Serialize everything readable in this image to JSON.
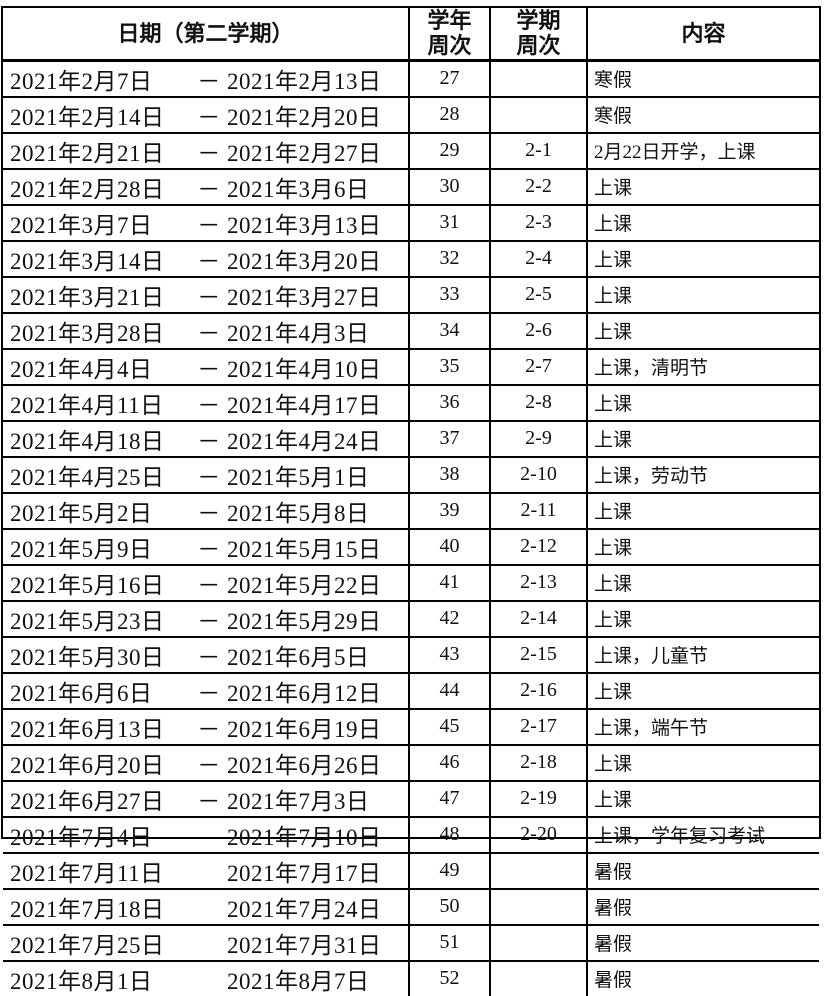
{
  "colors": {
    "border": "#000000",
    "background": "#ffffff",
    "text": "#111111"
  },
  "table": {
    "headers": {
      "date": "日期（第二学期）",
      "year_week": "学年\n周次",
      "semester_week": "学期\n周次",
      "content": "内容"
    },
    "rows": [
      {
        "start": "2021年2月7日",
        "dash": "－",
        "end": "2021年2月13日",
        "year_week": "27",
        "semester_week": "",
        "content": "寒假"
      },
      {
        "start": "2021年2月14日",
        "dash": "－",
        "end": "2021年2月20日",
        "year_week": "28",
        "semester_week": "",
        "content": "寒假"
      },
      {
        "start": "2021年2月21日",
        "dash": "－",
        "end": "2021年2月27日",
        "year_week": "29",
        "semester_week": "2-1",
        "content": "2月22日开学，上课"
      },
      {
        "start": "2021年2月28日",
        "dash": "－",
        "end": "2021年3月6日",
        "year_week": "30",
        "semester_week": "2-2",
        "content": "上课"
      },
      {
        "start": "2021年3月7日",
        "dash": "－",
        "end": "2021年3月13日",
        "year_week": "31",
        "semester_week": "2-3",
        "content": "上课"
      },
      {
        "start": "2021年3月14日",
        "dash": "－",
        "end": "2021年3月20日",
        "year_week": "32",
        "semester_week": "2-4",
        "content": "上课"
      },
      {
        "start": "2021年3月21日",
        "dash": "－",
        "end": "2021年3月27日",
        "year_week": "33",
        "semester_week": "2-5",
        "content": "上课"
      },
      {
        "start": "2021年3月28日",
        "dash": "－",
        "end": "2021年4月3日",
        "year_week": "34",
        "semester_week": "2-6",
        "content": "上课"
      },
      {
        "start": "2021年4月4日",
        "dash": "－",
        "end": "2021年4月10日",
        "year_week": "35",
        "semester_week": "2-7",
        "content": "上课，清明节"
      },
      {
        "start": "2021年4月11日",
        "dash": "－",
        "end": "2021年4月17日",
        "year_week": "36",
        "semester_week": "2-8",
        "content": "上课"
      },
      {
        "start": "2021年4月18日",
        "dash": "－",
        "end": "2021年4月24日",
        "year_week": "37",
        "semester_week": "2-9",
        "content": "上课"
      },
      {
        "start": "2021年4月25日",
        "dash": "－",
        "end": "2021年5月1日",
        "year_week": "38",
        "semester_week": "2-10",
        "content": "上课，劳动节"
      },
      {
        "start": "2021年5月2日",
        "dash": "－",
        "end": "2021年5月8日",
        "year_week": "39",
        "semester_week": "2-11",
        "content": "上课"
      },
      {
        "start": "2021年5月9日",
        "dash": "－",
        "end": "2021年5月15日",
        "year_week": "40",
        "semester_week": "2-12",
        "content": "上课"
      },
      {
        "start": "2021年5月16日",
        "dash": "－",
        "end": "2021年5月22日",
        "year_week": "41",
        "semester_week": "2-13",
        "content": "上课"
      },
      {
        "start": "2021年5月23日",
        "dash": "－",
        "end": "2021年5月29日",
        "year_week": "42",
        "semester_week": "2-14",
        "content": "上课"
      },
      {
        "start": "2021年5月30日",
        "dash": "－",
        "end": "2021年6月5日",
        "year_week": "43",
        "semester_week": "2-15",
        "content": "上课，儿童节"
      },
      {
        "start": "2021年6月6日",
        "dash": "－",
        "end": "2021年6月12日",
        "year_week": "44",
        "semester_week": "2-16",
        "content": "上课"
      },
      {
        "start": "2021年6月13日",
        "dash": "－",
        "end": "2021年6月19日",
        "year_week": "45",
        "semester_week": "2-17",
        "content": "上课，端午节"
      },
      {
        "start": "2021年6月20日",
        "dash": "－",
        "end": "2021年6月26日",
        "year_week": "46",
        "semester_week": "2-18",
        "content": "上课"
      },
      {
        "start": "2021年6月27日",
        "dash": "－",
        "end": "2021年7月3日",
        "year_week": "47",
        "semester_week": "2-19",
        "content": "上课"
      },
      {
        "start": "2021年7月4日",
        "dash": "",
        "end": "2021年7月10日",
        "year_week": "48",
        "semester_week": "2-20",
        "content": "上课，学年复习考试"
      },
      {
        "start": "2021年7月11日",
        "dash": "",
        "end": "2021年7月17日",
        "year_week": "49",
        "semester_week": "",
        "content": "暑假"
      },
      {
        "start": "2021年7月18日",
        "dash": "",
        "end": "2021年7月24日",
        "year_week": "50",
        "semester_week": "",
        "content": "暑假"
      },
      {
        "start": "2021年7月25日",
        "dash": "",
        "end": "2021年7月31日",
        "year_week": "51",
        "semester_week": "",
        "content": "暑假"
      },
      {
        "start": "2021年8月1日",
        "dash": "",
        "end": "2021年8月7日",
        "year_week": "52",
        "semester_week": "",
        "content": "暑假"
      }
    ]
  }
}
